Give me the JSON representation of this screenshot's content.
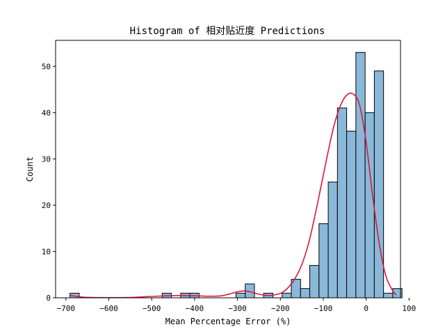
{
  "chart_data": {
    "type": "bar",
    "title": "Histogram of 相对贴近度 Predictions",
    "xlabel": "Mean Percentage Error (%)",
    "ylabel": "Count",
    "xlim": [
      -724,
      80
    ],
    "ylim": [
      0,
      55.6
    ],
    "xticks": [
      -700,
      -600,
      -500,
      -400,
      -300,
      -200,
      -100,
      0,
      100
    ],
    "xtick_labels": [
      "−700",
      "−600",
      "−500",
      "−400",
      "−300",
      "−200",
      "−100",
      "0",
      "100"
    ],
    "yticks": [
      0,
      10,
      20,
      30,
      40,
      50
    ],
    "ytick_labels": [
      "0",
      "10",
      "20",
      "30",
      "40",
      "50"
    ],
    "bin_width": 21.5,
    "bins": [
      {
        "left": -690.5,
        "count": 1
      },
      {
        "left": -475.5,
        "count": 1
      },
      {
        "left": -432.5,
        "count": 1
      },
      {
        "left": -411.0,
        "count": 1
      },
      {
        "left": -303.5,
        "count": 1
      },
      {
        "left": -282.0,
        "count": 3
      },
      {
        "left": -239.0,
        "count": 1
      },
      {
        "left": -196.0,
        "count": 1
      },
      {
        "left": -174.5,
        "count": 4
      },
      {
        "left": -153.0,
        "count": 2
      },
      {
        "left": -131.5,
        "count": 7
      },
      {
        "left": -110.0,
        "count": 16
      },
      {
        "left": -88.5,
        "count": 25
      },
      {
        "left": -67.0,
        "count": 41
      },
      {
        "left": -45.5,
        "count": 36
      },
      {
        "left": -24.0,
        "count": 53
      },
      {
        "left": -2.5,
        "count": 40
      },
      {
        "left": 19.0,
        "count": 49
      },
      {
        "left": 40.5,
        "count": 1
      },
      {
        "left": 62.0,
        "count": 2
      }
    ],
    "kde": {
      "x": [
        -690,
        -660,
        -620,
        -580,
        -540,
        -500,
        -460,
        -430,
        -400,
        -370,
        -340,
        -320,
        -300,
        -285,
        -270,
        -255,
        -240,
        -225,
        -210,
        -195,
        -180,
        -165,
        -150,
        -135,
        -120,
        -105,
        -90,
        -75,
        -60,
        -45,
        -30,
        -15,
        0,
        15,
        30,
        45,
        60,
        70
      ],
      "y": [
        0.5,
        0.15,
        0.05,
        0.05,
        0.1,
        0.3,
        0.45,
        0.5,
        0.45,
        0.35,
        0.4,
        0.8,
        1.3,
        1.5,
        1.3,
        0.9,
        0.6,
        0.5,
        0.7,
        1.2,
        2.4,
        4.3,
        7.2,
        11.5,
        17.5,
        24.2,
        31.0,
        37.2,
        41.5,
        43.8,
        44.0,
        41.5,
        33.5,
        22.0,
        12.0,
        5.0,
        1.8,
        0.6
      ]
    },
    "colors": {
      "bar_fill": "#8ab8d8",
      "bar_edge": "#000000",
      "kde_line": "#dc143c"
    },
    "grid": false,
    "legend": "none"
  }
}
